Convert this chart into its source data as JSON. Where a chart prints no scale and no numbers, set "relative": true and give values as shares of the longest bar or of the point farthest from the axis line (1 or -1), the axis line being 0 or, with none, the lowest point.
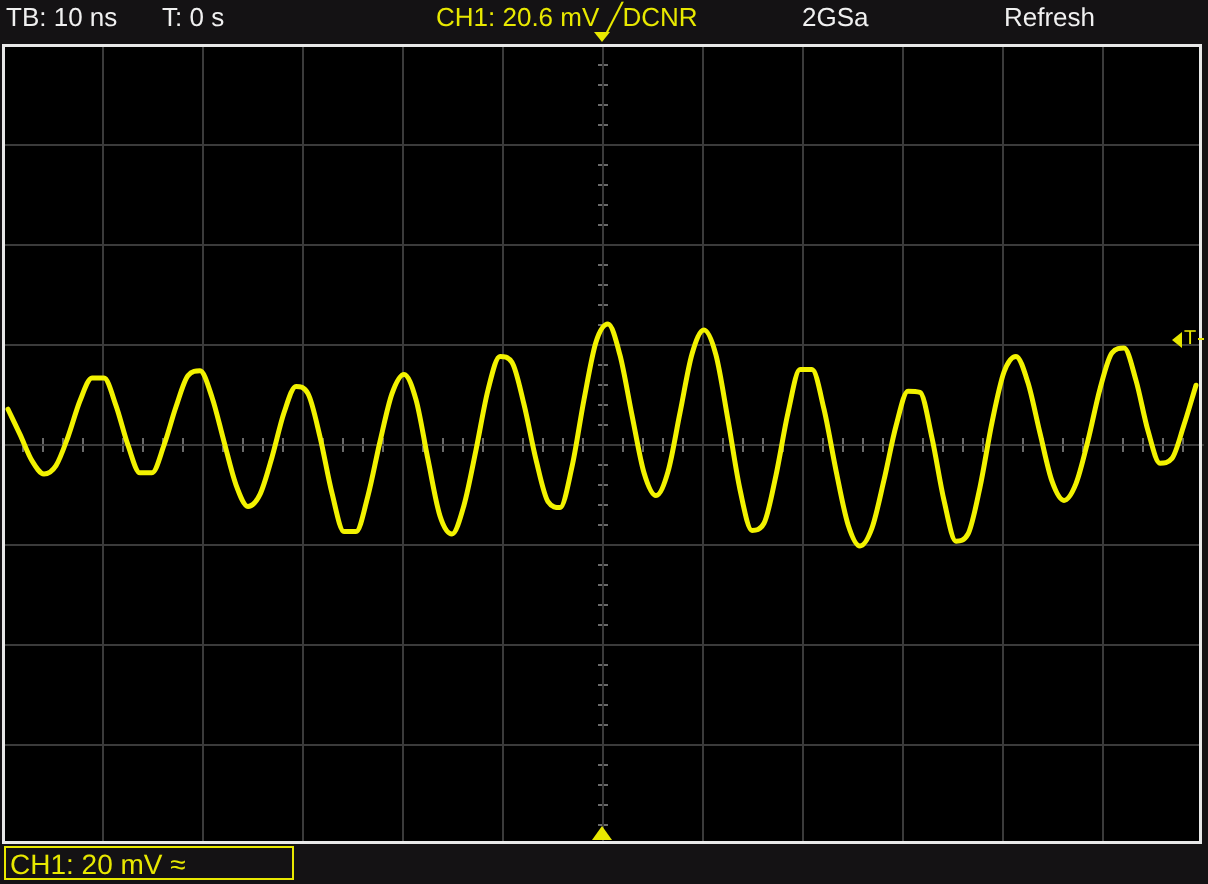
{
  "chart_data": {
    "type": "line",
    "annotations": [
      "TB: 10 ns",
      "T: 0 s",
      "CH1: 20.6 mV ╱DCNR",
      "2GSa",
      "Refresh",
      "CH1: 20 mV ≈",
      "T"
    ],
    "categories": [
      null,
      null,
      null,
      null,
      null,
      null,
      null,
      null,
      null,
      null,
      null,
      null,
      null,
      null,
      null,
      null,
      null,
      null,
      null,
      null,
      null,
      null,
      null,
      null,
      null,
      null,
      null,
      null,
      null,
      null,
      null,
      null,
      null,
      null,
      null,
      null,
      null,
      null,
      null,
      null,
      null,
      null,
      null,
      null,
      null,
      null,
      null,
      null,
      null,
      null,
      null,
      null,
      null,
      null,
      null,
      null,
      null,
      null,
      null,
      null,
      null,
      null,
      null,
      null,
      null,
      null,
      null,
      null,
      null,
      null,
      null,
      null,
      null,
      null,
      null,
      null,
      null,
      null,
      null,
      null,
      null,
      null,
      null,
      null,
      null,
      null,
      null,
      null,
      null,
      null,
      null,
      null,
      null,
      null,
      null,
      null,
      null,
      null,
      null,
      null
    ],
    "values": [
      0.29,
      0.08,
      -0.14,
      -0.25,
      -0.18,
      0.06,
      0.36,
      0.55,
      0.55,
      0.32,
      -0.01,
      -0.24,
      -0.24,
      -0.01,
      0.31,
      0.57,
      0.61,
      0.39,
      0.02,
      -0.34,
      -0.52,
      -0.42,
      -0.11,
      0.26,
      0.48,
      0.42,
      0.06,
      -0.41,
      -0.73,
      -0.73,
      -0.43,
      0.02,
      0.42,
      0.58,
      0.37,
      -0.13,
      -0.6,
      -0.75,
      -0.51,
      -0.05,
      0.45,
      0.73,
      0.68,
      0.33,
      -0.13,
      -0.48,
      -0.53,
      -0.19,
      0.37,
      0.85,
      1.0,
      0.74,
      0.24,
      -0.24,
      -0.43,
      -0.23,
      0.26,
      0.75,
      0.95,
      0.74,
      0.2,
      -0.38,
      -0.72,
      -0.66,
      -0.26,
      0.26,
      0.62,
      0.62,
      0.29,
      -0.22,
      -0.67,
      -0.85,
      -0.7,
      -0.3,
      0.15,
      0.44,
      0.43,
      0.05,
      -0.47,
      -0.81,
      -0.75,
      -0.36,
      0.18,
      0.6,
      0.73,
      0.51,
      0.09,
      -0.31,
      -0.47,
      -0.33,
      0.03,
      0.46,
      0.76,
      0.8,
      0.53,
      0.11,
      -0.16,
      -0.12,
      0.16,
      0.49
    ],
    "color": "#f2f200",
    "relative": true,
    "grid": true,
    "marker": "none"
  }
}
